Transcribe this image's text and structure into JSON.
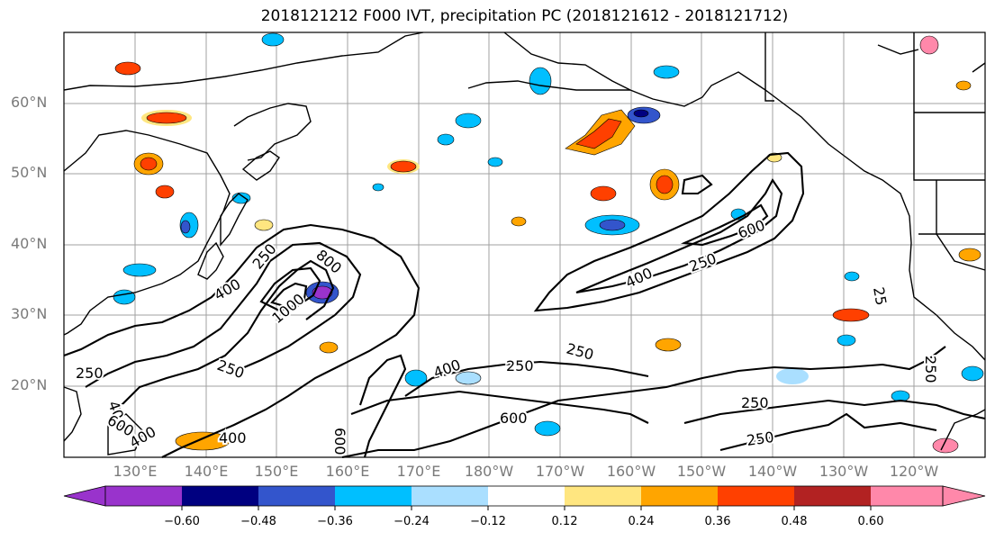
{
  "title": "2018121212 F000 IVT, precipitation PC (2018121612 - 2018121712)",
  "lat_labels": [
    "60°N",
    "50°N",
    "40°N",
    "30°N",
    "20°N"
  ],
  "lon_labels": [
    "130°E",
    "140°E",
    "150°E",
    "160°E",
    "170°E",
    "180°W",
    "170°W",
    "160°W",
    "150°W",
    "140°W",
    "130°W",
    "120°W"
  ],
  "contour_levels": [
    "250",
    "400",
    "600",
    "800",
    "1000"
  ],
  "contour_labels": [
    "250",
    "250",
    "250",
    "250",
    "250",
    "250",
    "250",
    "250",
    "400",
    "400",
    "400",
    "400",
    "400",
    "400",
    "600",
    "600",
    "600",
    "600",
    "800",
    "1000",
    "25",
    "250"
  ],
  "colorbar": {
    "ticks": [
      "−0.60",
      "−0.48",
      "−0.36",
      "−0.24",
      "−0.12",
      "0.12",
      "0.24",
      "0.36",
      "0.48",
      "0.60"
    ],
    "colors": [
      "#9933cc",
      "#000080",
      "#3355cc",
      "#00bfff",
      "#aadfff",
      "#ffffff",
      "#ffe680",
      "#ffa500",
      "#ff4000",
      "#b22222",
      "#ff88aa"
    ]
  },
  "colors": {
    "land_outline": "#000000",
    "grid": "#a0a0a0",
    "ivt_contour": "#000000",
    "axis_label": "#7a7a7a"
  }
}
